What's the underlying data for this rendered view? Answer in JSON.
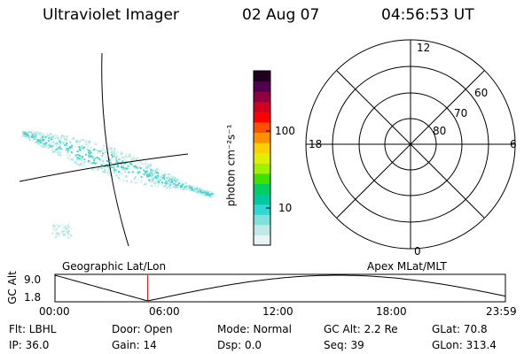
{
  "header": {
    "instrument": "Ultraviolet Imager",
    "date": "02 Aug 07",
    "time": "04:56:53 UT"
  },
  "colorbar": {
    "unit_label": "photon cm⁻²s⁻¹",
    "ticks": [
      {
        "label": "100",
        "value": 100
      },
      {
        "label": "10",
        "value": 10
      }
    ],
    "colors": [
      "#e8f4f4",
      "#bfe8e8",
      "#7fe0dc",
      "#2fd8d0",
      "#00c8a0",
      "#00d060",
      "#40e000",
      "#a0f000",
      "#e0f000",
      "#ffd000",
      "#ff9000",
      "#ff5000",
      "#ff0000",
      "#d00020",
      "#900040",
      "#500050",
      "#200020"
    ]
  },
  "polar_plot": {
    "mlt_labels": {
      "top": "12",
      "bottom": "0",
      "left": "18",
      "right": "6"
    },
    "lat_labels": [
      "60",
      "70",
      "80"
    ]
  },
  "timeline": {
    "y_axis_label": "GC Alt",
    "y_ticks": [
      "9.0",
      "1.8"
    ],
    "x_ticks": [
      "00:00",
      "06:00",
      "12:00",
      "18:00",
      "23:59"
    ],
    "left_caption": "Geographic Lat/Lon",
    "right_caption": "Apex MLat/MLT",
    "current_time_fraction": 0.206
  },
  "info": {
    "flt": "Flt: LBHL",
    "door": "Door: Open",
    "mode": "Mode: Normal",
    "gc_alt": "GC Alt: 2.2 Re",
    "glat": "GLat:  70.8",
    "ip": "IP: 36.0",
    "gain": "Gain: 14",
    "dsp": "Dsp:     0.0",
    "seq": "Seq: 39",
    "glon": "GLon: 313.4"
  },
  "colors": {
    "aurora": "#40d8d0",
    "time_marker": "#cc0000"
  }
}
